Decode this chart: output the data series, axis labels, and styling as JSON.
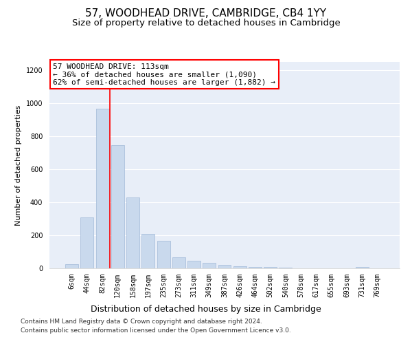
{
  "title": "57, WOODHEAD DRIVE, CAMBRIDGE, CB4 1YY",
  "subtitle": "Size of property relative to detached houses in Cambridge",
  "xlabel": "Distribution of detached houses by size in Cambridge",
  "ylabel": "Number of detached properties",
  "footer_line1": "Contains HM Land Registry data © Crown copyright and database right 2024.",
  "footer_line2": "Contains public sector information licensed under the Open Government Licence v3.0.",
  "categories": [
    "6sqm",
    "44sqm",
    "82sqm",
    "120sqm",
    "158sqm",
    "197sqm",
    "235sqm",
    "273sqm",
    "311sqm",
    "349sqm",
    "387sqm",
    "426sqm",
    "464sqm",
    "502sqm",
    "540sqm",
    "578sqm",
    "617sqm",
    "655sqm",
    "693sqm",
    "731sqm",
    "769sqm"
  ],
  "values": [
    25,
    310,
    965,
    745,
    430,
    207,
    165,
    68,
    46,
    33,
    22,
    13,
    8,
    7,
    5,
    0,
    0,
    0,
    0,
    10,
    0
  ],
  "bar_color": "#c9d9ed",
  "bar_edge_color": "#a0b8d8",
  "annotation_line1": "57 WOODHEAD DRIVE: 113sqm",
  "annotation_line2": "← 36% of detached houses are smaller (1,090)",
  "annotation_line3": "62% of semi-detached houses are larger (1,882) →",
  "annotation_box_color": "white",
  "annotation_box_edge_color": "red",
  "vline_color": "red",
  "ylim": [
    0,
    1250
  ],
  "yticks": [
    0,
    200,
    400,
    600,
    800,
    1000,
    1200
  ],
  "background_color": "#e8eef8",
  "grid_color": "white",
  "title_fontsize": 11,
  "subtitle_fontsize": 9.5,
  "tick_fontsize": 7,
  "ylabel_fontsize": 8,
  "xlabel_fontsize": 9,
  "annotation_fontsize": 8,
  "footer_fontsize": 6.5
}
